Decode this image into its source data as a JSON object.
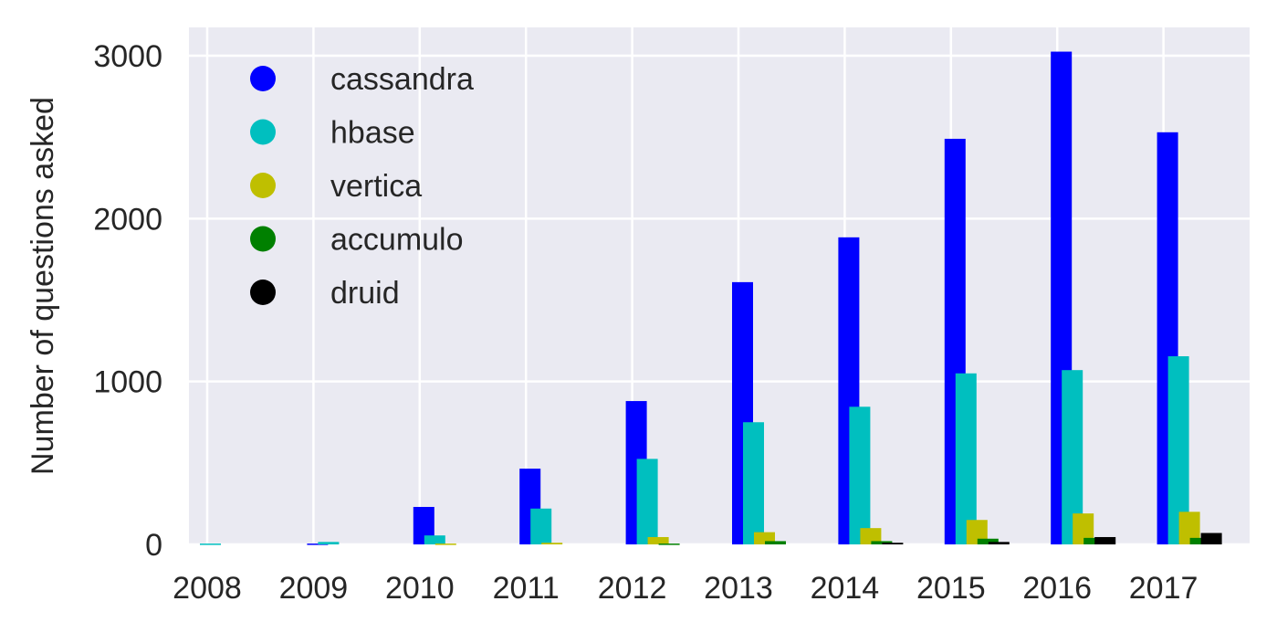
{
  "chart_data": {
    "type": "bar",
    "title": "",
    "xlabel": "",
    "ylabel": "Number of questions asked",
    "ylim": [
      0,
      3180
    ],
    "yticks": [
      0,
      1000,
      2000,
      3000
    ],
    "grid": true,
    "legend_position": "top-left",
    "categories": [
      "2008",
      "2009",
      "2010",
      "2011",
      "2012",
      "2013",
      "2014",
      "2015",
      "2016",
      "2017"
    ],
    "series": [
      {
        "name": "cassandra",
        "color": "#0000ff",
        "values": [
          0,
          5,
          230,
          465,
          880,
          1610,
          1885,
          2490,
          3025,
          2530
        ]
      },
      {
        "name": "hbase",
        "color": "#00bfbf",
        "values": [
          5,
          15,
          55,
          220,
          525,
          750,
          845,
          1050,
          1070,
          1155
        ]
      },
      {
        "name": "vertica",
        "color": "#bfbf00",
        "values": [
          0,
          0,
          5,
          10,
          45,
          75,
          100,
          150,
          190,
          200
        ]
      },
      {
        "name": "accumulo",
        "color": "#008000",
        "values": [
          0,
          0,
          0,
          0,
          5,
          20,
          20,
          35,
          40,
          40
        ]
      },
      {
        "name": "druid",
        "color": "#000000",
        "values": [
          0,
          0,
          0,
          0,
          0,
          0,
          10,
          15,
          45,
          70
        ]
      }
    ]
  }
}
